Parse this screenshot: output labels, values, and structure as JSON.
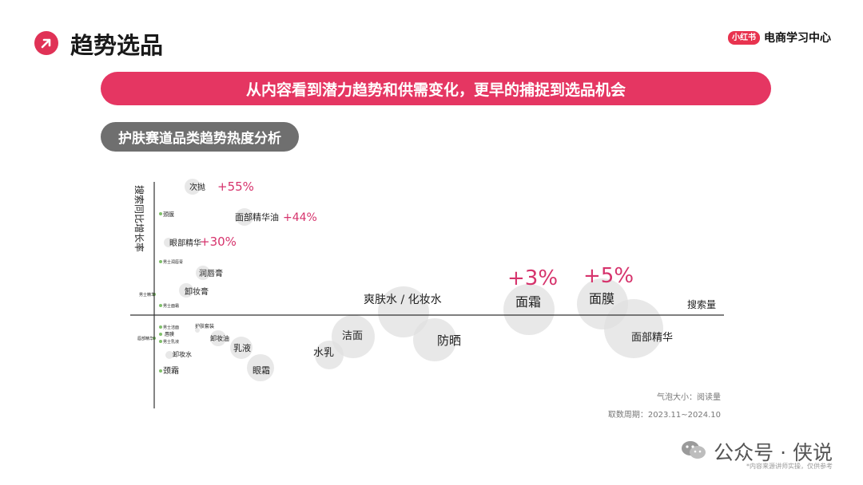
{
  "header": {
    "title": "趋势选品",
    "brand_badge": "小红书",
    "brand_text": "电商学习中心"
  },
  "banner": {
    "text": "从内容看到潜力趋势和供需变化，更早的捕捉到选品机会"
  },
  "subtitle": {
    "text": "护肤赛道品类趋势热度分析"
  },
  "notes": {
    "bubble_size": "气泡大小：阅读量",
    "period": "取数周期：2023.11~2024.10"
  },
  "footer": {
    "text": "公众号 · 侠说",
    "note": "*内容来源讲师实操，仅供参考"
  },
  "colors": {
    "accent": "#e53662",
    "growth_label": "#d6336c",
    "bubble": "#e0e0e0",
    "axis": "#333333"
  },
  "chart_data": {
    "type": "scatter",
    "xlabel": "搜索量",
    "ylabel": "搜索同比增长率",
    "size_label": "气泡大小：阅读量",
    "points": [
      {
        "name": "次抛",
        "growth_label": "+55%"
      },
      {
        "name": "颈膜"
      },
      {
        "name": "面部精华油",
        "growth_label": "+44%"
      },
      {
        "name": "眼部精华",
        "growth_label": "+30%"
      },
      {
        "name": "男士润唇膏"
      },
      {
        "name": "润唇膏"
      },
      {
        "name": "男士精华"
      },
      {
        "name": "卸妆膏"
      },
      {
        "name": "男士面霜"
      },
      {
        "name": "爽肤水 / 化妆水"
      },
      {
        "name": "面霜",
        "growth_label": "+3%"
      },
      {
        "name": "面膜",
        "growth_label": "+5%"
      },
      {
        "name": "男士洁面"
      },
      {
        "name": "唇膜"
      },
      {
        "name": "男士乳液"
      },
      {
        "name": "唇部精华"
      },
      {
        "name": "护肤套装"
      },
      {
        "name": "卸妆油"
      },
      {
        "name": "卸妆水"
      },
      {
        "name": "乳液"
      },
      {
        "name": "颈霜"
      },
      {
        "name": "眼霜"
      },
      {
        "name": "洁面"
      },
      {
        "name": "水乳"
      },
      {
        "name": "防晒"
      },
      {
        "name": "面部精华"
      }
    ]
  }
}
